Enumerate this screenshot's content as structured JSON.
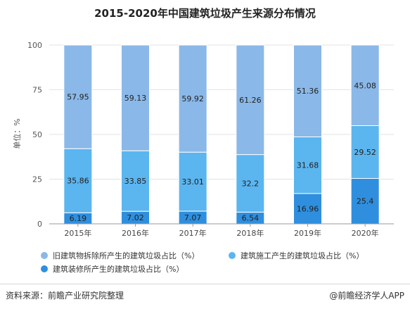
{
  "title": "2015-2020年中国建筑垃圾产生来源分布情况",
  "chart_data": {
    "type": "bar",
    "stacked": true,
    "categories": [
      "2015年",
      "2016年",
      "2017年",
      "2018年",
      "2019年",
      "2020年"
    ],
    "ylabel": "单位：%",
    "ylim": [
      0,
      100
    ],
    "yticks": [
      0,
      25,
      50,
      75,
      100
    ],
    "grid": true,
    "legend_position": "bottom",
    "series": [
      {
        "name": "建筑装修所产生的建筑垃圾占比（%）",
        "color": "#2f8fde",
        "values": [
          6.19,
          7.02,
          7.07,
          6.54,
          16.96,
          25.4
        ]
      },
      {
        "name": "建筑施工产生的建筑垃圾占比（%）",
        "color": "#5bb5ef",
        "values": [
          35.86,
          33.85,
          33.01,
          32.2,
          31.68,
          29.52
        ]
      },
      {
        "name": "旧建筑物拆除所产生的建筑垃圾占比（%）",
        "color": "#8ab8e8",
        "values": [
          57.95,
          59.13,
          59.92,
          61.26,
          51.36,
          45.08
        ]
      }
    ]
  },
  "footer": {
    "source": "资料来源：前瞻产业研究院整理",
    "brand": "@前瞻经济学人APP"
  }
}
